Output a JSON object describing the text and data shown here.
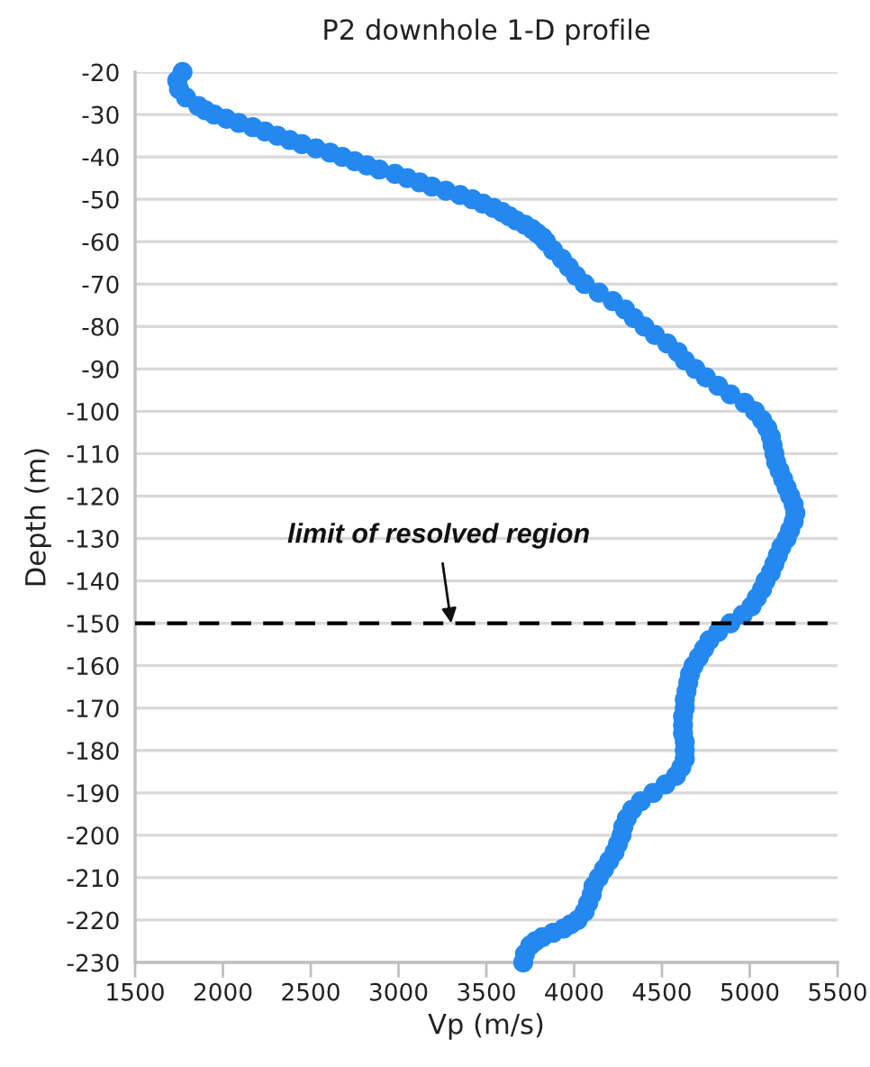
{
  "chart_data": {
    "type": "scatter",
    "title": "P2 downhole 1-D profile",
    "xlabel": "Vp (m/s)",
    "ylabel": "Depth (m)",
    "series": [
      {
        "color": "#2389f0",
        "x": [
          1770,
          1740,
          1750,
          1790,
          1860,
          1900,
          1950,
          2020,
          2090,
          2170,
          2240,
          2310,
          2380,
          2450,
          2530,
          2610,
          2680,
          2750,
          2820,
          2890,
          2980,
          3050,
          3120,
          3190,
          3270,
          3350,
          3420,
          3480,
          3540,
          3590,
          3630,
          3670,
          3720,
          3760,
          3790,
          3820,
          3840,
          3880,
          3930,
          3970,
          4010,
          4060,
          4140,
          4220,
          4290,
          4340,
          4400,
          4460,
          4530,
          4590,
          4630,
          4690,
          4750,
          4820,
          4890,
          4970,
          5030,
          5070,
          5100,
          5120,
          5130,
          5140,
          5150,
          5170,
          5190,
          5210,
          5230,
          5250,
          5260,
          5250,
          5230,
          5210,
          5180,
          5160,
          5140,
          5120,
          5090,
          5070,
          5040,
          5010,
          4960,
          4890,
          4820,
          4770,
          4740,
          4710,
          4680,
          4660,
          4650,
          4640,
          4630,
          4630,
          4620,
          4620,
          4620,
          4630,
          4630,
          4630,
          4610,
          4580,
          4520,
          4450,
          4380,
          4330,
          4300,
          4280,
          4270,
          4250,
          4230,
          4200,
          4170,
          4140,
          4110,
          4100,
          4080,
          4060,
          4020,
          3980,
          3940,
          3880,
          3820,
          3780,
          3750,
          3720,
          3710
        ],
        "values": [
          -20,
          -22,
          -24,
          -26,
          -28,
          -29,
          -30,
          -31,
          -32,
          -33,
          -34,
          -35,
          -36,
          -37,
          -38,
          -39,
          -40,
          -41,
          -42,
          -43,
          -44,
          -45,
          -46,
          -47,
          -48,
          -49,
          -50,
          -51,
          -52,
          -53,
          -54,
          -55,
          -56,
          -57,
          -58,
          -59,
          -60,
          -62,
          -64,
          -66,
          -68,
          -70,
          -72,
          -74,
          -76,
          -78,
          -80,
          -82,
          -84,
          -86,
          -88,
          -90,
          -92,
          -94,
          -96,
          -98,
          -100,
          -102,
          -104,
          -106,
          -108,
          -110,
          -112,
          -114,
          -116,
          -118,
          -120,
          -122,
          -124,
          -126,
          -128,
          -130,
          -132,
          -134,
          -136,
          -138,
          -140,
          -142,
          -144,
          -146,
          -148,
          -150,
          -152,
          -154,
          -156,
          -158,
          -160,
          -162,
          -164,
          -166,
          -168,
          -170,
          -172,
          -174,
          -176,
          -178,
          -180,
          -182,
          -184,
          -186,
          -188,
          -190,
          -192,
          -194,
          -196,
          -198,
          -200,
          -202,
          -204,
          -206,
          -208,
          -210,
          -212,
          -214,
          -216,
          -218,
          -220,
          -221,
          -222,
          -223,
          -224,
          -225,
          -226,
          -228,
          -230
        ]
      }
    ],
    "marker": "circle",
    "xlim": [
      1500,
      5500
    ],
    "xticks": [
      1500,
      2000,
      2500,
      3000,
      3500,
      4000,
      4500,
      5000,
      5500
    ],
    "ylim": [
      -230,
      -20
    ],
    "yticks": [
      -20,
      -30,
      -40,
      -50,
      -60,
      -70,
      -80,
      -90,
      -100,
      -110,
      -120,
      -130,
      -140,
      -150,
      -160,
      -170,
      -180,
      -190,
      -200,
      -210,
      -220,
      -230
    ],
    "grid": "y",
    "ref_lines": [
      {
        "axis": "y",
        "value": -150,
        "color": "#000000",
        "line_style": "dashed"
      }
    ],
    "annotations": [
      {
        "text": "limit of resolved region",
        "x": 3300,
        "y": -150
      }
    ]
  }
}
